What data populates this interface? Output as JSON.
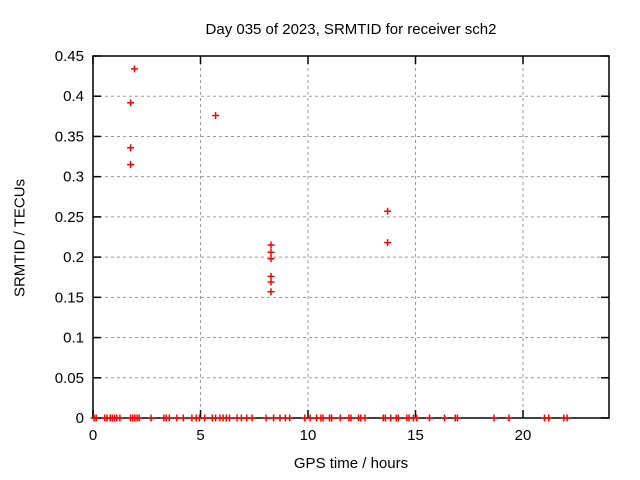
{
  "chart_data": {
    "type": "scatter",
    "title": "Day 035 of 2023, SRMTID for receiver sch2",
    "xlabel": "GPS time / hours",
    "ylabel": "SRMTID / TECUs",
    "xlim": [
      0,
      24
    ],
    "ylim": [
      0,
      0.45
    ],
    "xticks": [
      0,
      5,
      10,
      15,
      20
    ],
    "xtick_labels": [
      "0",
      "5",
      "10",
      "15",
      "20"
    ],
    "yticks": [
      0,
      0.05,
      0.1,
      0.15,
      0.2,
      0.25,
      0.3,
      0.35,
      0.4,
      0.45
    ],
    "ytick_labels": [
      "0",
      "0.05",
      "0.1",
      "0.15",
      "0.2",
      "0.25",
      "0.3",
      "0.35",
      "0.4",
      "0.45"
    ],
    "grid": true,
    "legend": "none",
    "colors": {
      "marker": "#ff0000",
      "grid": "#9a9a9a",
      "border": "#000000",
      "background": "#ffffff"
    },
    "series": [
      {
        "name": "SRMTID",
        "marker": "plus",
        "color": "#ff0000",
        "points": [
          [
            1.93,
            0.434
          ],
          [
            1.75,
            0.392
          ],
          [
            5.7,
            0.376
          ],
          [
            1.75,
            0.336
          ],
          [
            1.75,
            0.315
          ],
          [
            8.28,
            0.215
          ],
          [
            8.28,
            0.206
          ],
          [
            8.28,
            0.198
          ],
          [
            8.28,
            0.176
          ],
          [
            8.28,
            0.169
          ],
          [
            8.28,
            0.157
          ],
          [
            13.7,
            0.257
          ],
          [
            13.7,
            0.218
          ],
          [
            0.05,
            0
          ],
          [
            0.15,
            0
          ],
          [
            0.55,
            0
          ],
          [
            0.65,
            0
          ],
          [
            0.8,
            0
          ],
          [
            0.9,
            0
          ],
          [
            1.0,
            0
          ],
          [
            1.1,
            0
          ],
          [
            1.25,
            0
          ],
          [
            1.75,
            0
          ],
          [
            1.85,
            0
          ],
          [
            1.95,
            0
          ],
          [
            2.05,
            0
          ],
          [
            2.15,
            0
          ],
          [
            2.7,
            0
          ],
          [
            3.3,
            0
          ],
          [
            3.4,
            0
          ],
          [
            3.55,
            0
          ],
          [
            3.9,
            0
          ],
          [
            4.2,
            0
          ],
          [
            4.6,
            0
          ],
          [
            4.8,
            0
          ],
          [
            4.95,
            0
          ],
          [
            5.2,
            0
          ],
          [
            5.55,
            0
          ],
          [
            5.7,
            0
          ],
          [
            5.9,
            0
          ],
          [
            6.05,
            0
          ],
          [
            6.2,
            0
          ],
          [
            6.35,
            0
          ],
          [
            6.7,
            0
          ],
          [
            6.9,
            0
          ],
          [
            7.15,
            0
          ],
          [
            7.4,
            0
          ],
          [
            8.05,
            0
          ],
          [
            8.4,
            0
          ],
          [
            8.7,
            0
          ],
          [
            8.95,
            0
          ],
          [
            9.15,
            0
          ],
          [
            9.85,
            0
          ],
          [
            10.1,
            0
          ],
          [
            10.4,
            0
          ],
          [
            10.6,
            0
          ],
          [
            10.7,
            0
          ],
          [
            11.0,
            0
          ],
          [
            11.1,
            0
          ],
          [
            11.5,
            0
          ],
          [
            11.9,
            0
          ],
          [
            12.0,
            0
          ],
          [
            12.35,
            0
          ],
          [
            12.45,
            0
          ],
          [
            12.65,
            0
          ],
          [
            13.5,
            0
          ],
          [
            13.6,
            0
          ],
          [
            13.85,
            0
          ],
          [
            14.1,
            0
          ],
          [
            14.2,
            0
          ],
          [
            14.6,
            0
          ],
          [
            14.7,
            0
          ],
          [
            14.9,
            0
          ],
          [
            15.05,
            0
          ],
          [
            15.65,
            0
          ],
          [
            16.35,
            0
          ],
          [
            16.85,
            0
          ],
          [
            16.95,
            0
          ],
          [
            18.65,
            0
          ],
          [
            19.35,
            0
          ],
          [
            21.0,
            0
          ],
          [
            21.2,
            0
          ],
          [
            21.9,
            0
          ],
          [
            22.05,
            0
          ]
        ]
      }
    ]
  }
}
